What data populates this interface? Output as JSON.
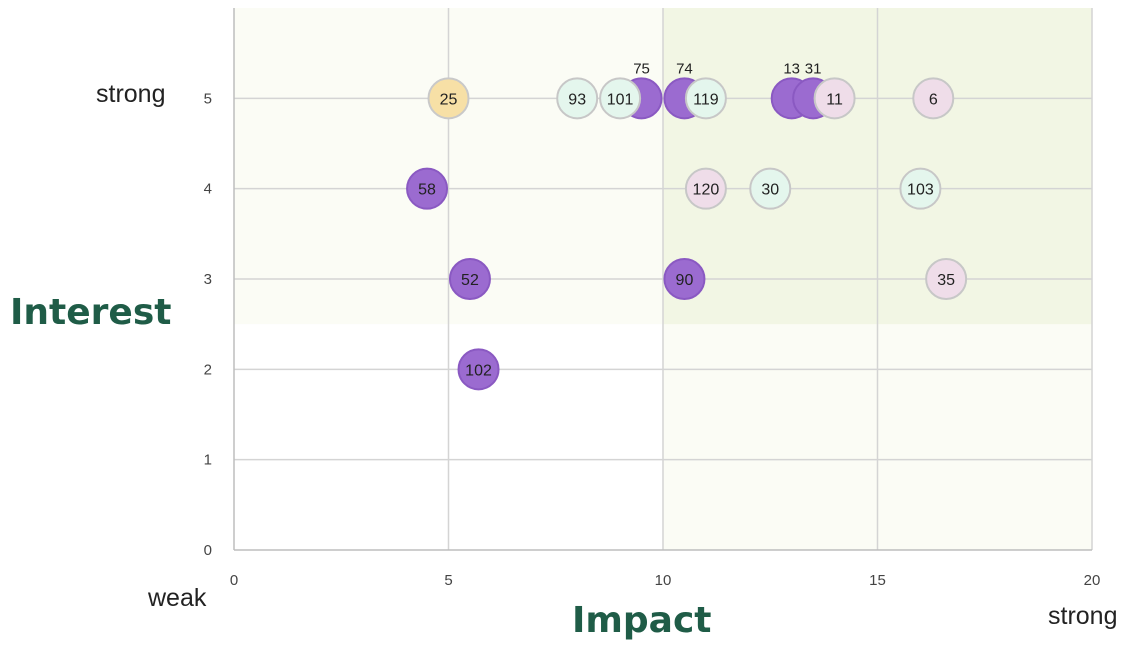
{
  "chart_data": {
    "type": "scatter",
    "title": "",
    "xlabel": "Impact",
    "ylabel": "Interest",
    "xlim": [
      0,
      20
    ],
    "ylim": [
      0,
      6
    ],
    "x_ticks": [
      "0",
      "5",
      "10",
      "15",
      "20"
    ],
    "y_ticks": [
      "0",
      "1",
      "2",
      "3",
      "4",
      "5"
    ],
    "x_end_labels": {
      "low": "weak",
      "high": "strong"
    },
    "y_end_labels": {
      "high": "strong"
    },
    "grid": true,
    "shaded_region": {
      "x": [
        10,
        20
      ],
      "y": [
        2.5,
        6
      ],
      "color": "#f2f6e4"
    },
    "colors": {
      "purple": "#9b6bd0",
      "pink": "#efdde9",
      "mint": "#e4f6ed",
      "yellow": "#f7e0a6"
    },
    "points": [
      {
        "label": "25",
        "x": 5.0,
        "y": 5,
        "color": "yellow"
      },
      {
        "label": "93",
        "x": 8.0,
        "y": 5,
        "color": "mint"
      },
      {
        "label": "75",
        "x": 9.5,
        "y": 5,
        "color": "purple"
      },
      {
        "label": "101",
        "x": 9.0,
        "y": 5,
        "color": "mint"
      },
      {
        "label": "74",
        "x": 10.5,
        "y": 5,
        "color": "purple"
      },
      {
        "label": "119",
        "x": 11.0,
        "y": 5,
        "color": "mint"
      },
      {
        "label": "13",
        "x": 13.0,
        "y": 5,
        "color": "purple"
      },
      {
        "label": "31",
        "x": 13.5,
        "y": 5,
        "color": "purple"
      },
      {
        "label": "11",
        "x": 14.0,
        "y": 5,
        "color": "pink"
      },
      {
        "label": "6",
        "x": 16.3,
        "y": 5,
        "color": "pink"
      },
      {
        "label": "58",
        "x": 4.5,
        "y": 4,
        "color": "purple"
      },
      {
        "label": "120",
        "x": 11.0,
        "y": 4,
        "color": "pink"
      },
      {
        "label": "30",
        "x": 12.5,
        "y": 4,
        "color": "mint"
      },
      {
        "label": "103",
        "x": 16.0,
        "y": 4,
        "color": "mint"
      },
      {
        "label": "52",
        "x": 5.5,
        "y": 3,
        "color": "purple"
      },
      {
        "label": "90",
        "x": 10.5,
        "y": 3,
        "color": "purple"
      },
      {
        "label": "35",
        "x": 16.6,
        "y": 3,
        "color": "pink"
      },
      {
        "label": "102",
        "x": 5.7,
        "y": 2,
        "color": "purple"
      }
    ],
    "labels_above": [
      "75",
      "74",
      "13",
      "31"
    ]
  }
}
